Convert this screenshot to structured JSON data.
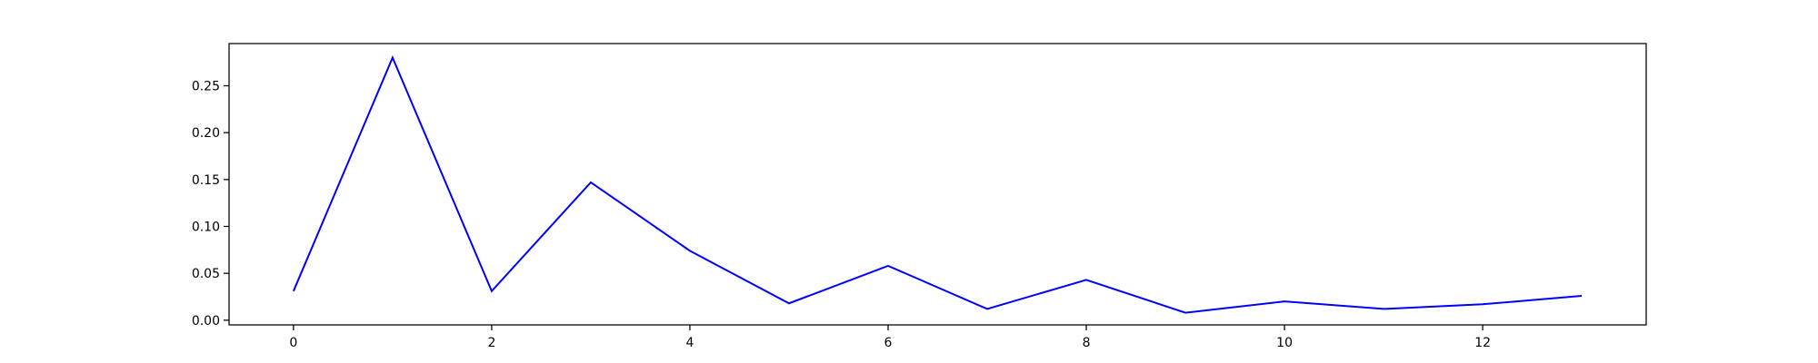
{
  "chart_data": {
    "type": "line",
    "title": "",
    "xlabel": "",
    "ylabel": "",
    "xlim": [
      -0.65,
      13.65
    ],
    "ylim": [
      -0.005,
      0.295
    ],
    "x_ticks": [
      0,
      2,
      4,
      6,
      8,
      10,
      12
    ],
    "y_ticks": [
      0.0,
      0.05,
      0.1,
      0.15,
      0.2,
      0.25
    ],
    "grid": false,
    "legend": "none",
    "series": [
      {
        "color": "#0000ff",
        "x": [
          0,
          1,
          2,
          3,
          4,
          5,
          6,
          7,
          8,
          9,
          10,
          11,
          12,
          13
        ],
        "y": [
          0.031,
          0.28,
          0.031,
          0.147,
          0.074,
          0.018,
          0.058,
          0.012,
          0.043,
          0.008,
          0.02,
          0.012,
          0.017,
          0.026
        ]
      }
    ]
  }
}
